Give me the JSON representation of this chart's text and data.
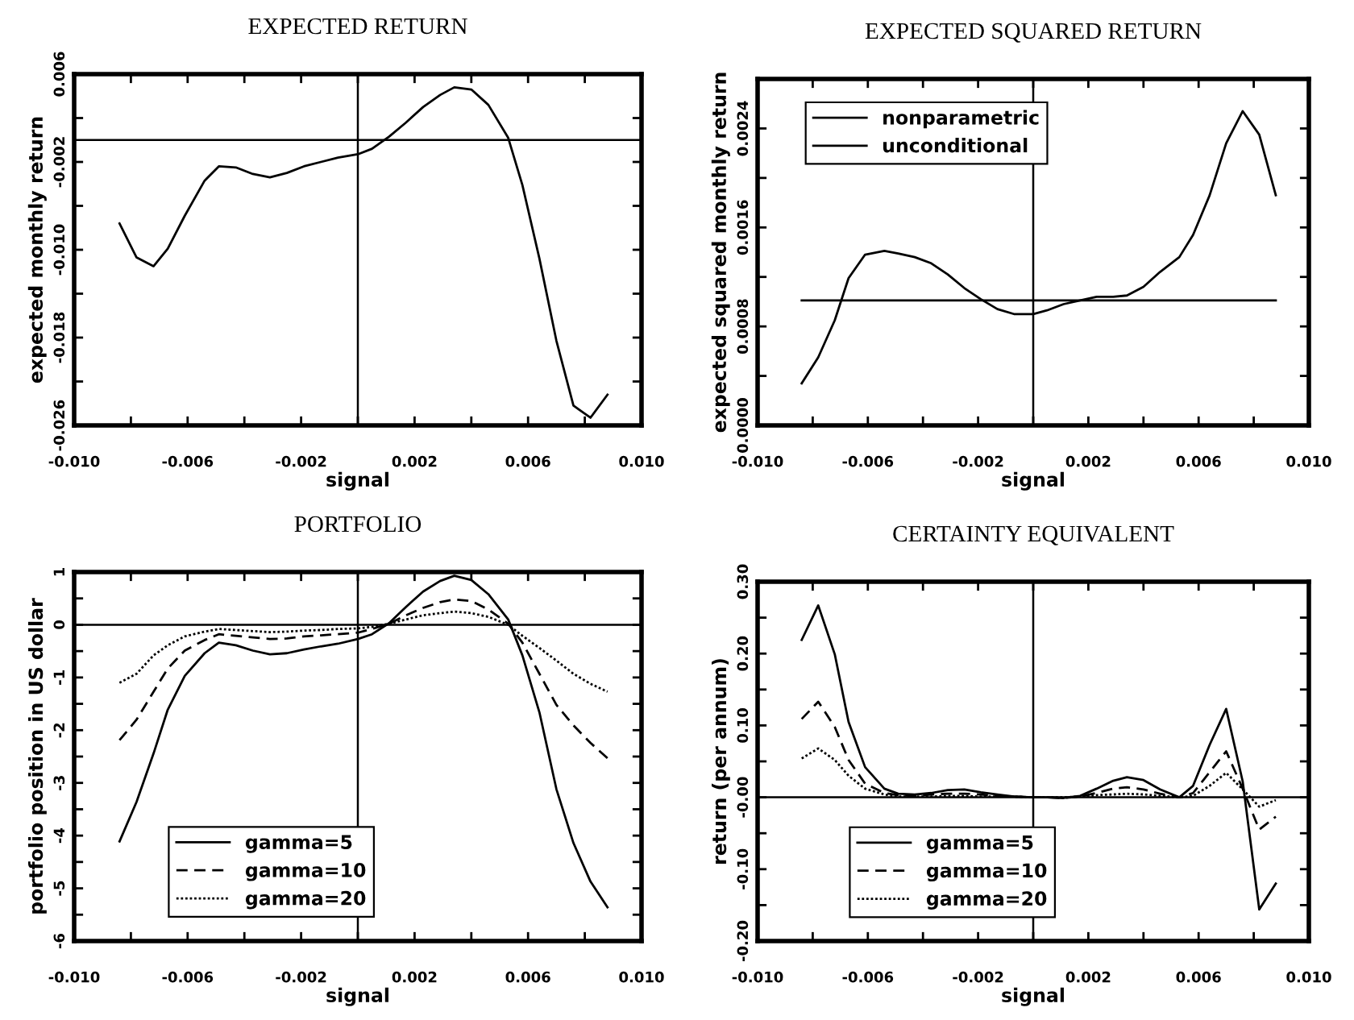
{
  "chart_data": [
    {
      "type": "line",
      "title": "EXPECTED RETURN",
      "xlabel": "signal",
      "ylabel": "expected monthly return",
      "x": [
        -0.0084,
        -0.0078,
        -0.0072,
        -0.0067,
        -0.0061,
        -0.0054,
        -0.0049,
        -0.0043,
        -0.0037,
        -0.0031,
        -0.0025,
        -0.0019,
        -0.0013,
        -0.0007,
        0.0,
        0.0005,
        0.0011,
        0.0017,
        0.0023,
        0.0029,
        0.0034,
        0.004,
        0.0046,
        0.0053,
        0.0058,
        0.0064,
        0.007,
        0.0076,
        0.0082,
        0.0088
      ],
      "series": [
        {
          "color": "#000000",
          "line_style": "solid",
          "values": [
            -0.0076,
            -0.0107,
            -0.0115,
            -0.0099,
            -0.0069,
            -0.0037,
            -0.0024,
            -0.0025,
            -0.0031,
            -0.0034,
            -0.003,
            -0.0024,
            -0.002,
            -0.0016,
            -0.0013,
            -0.0008,
            0.0003,
            0.0016,
            0.003,
            0.0041,
            0.0048,
            0.0046,
            0.0032,
            0.0002,
            -0.0041,
            -0.0108,
            -0.0183,
            -0.0242,
            -0.0253,
            -0.0232
          ]
        }
      ],
      "xlim": [
        -0.01,
        0.01
      ],
      "xticks": [
        {
          "value": -0.01,
          "label": "-0.010"
        },
        {
          "value": -0.008,
          "label": null
        },
        {
          "value": -0.006,
          "label": "-0.006"
        },
        {
          "value": -0.004,
          "label": null
        },
        {
          "value": -0.002,
          "label": "-0.002"
        },
        {
          "value": 0.0,
          "label": null
        },
        {
          "value": 0.002,
          "label": "0.002"
        },
        {
          "value": 0.004,
          "label": null
        },
        {
          "value": 0.006,
          "label": "0.006"
        },
        {
          "value": 0.008,
          "label": null
        },
        {
          "value": 0.01,
          "label": "0.010"
        }
      ],
      "ylim": [
        -0.026,
        0.006
      ],
      "yticks": [
        {
          "value": -0.026,
          "label": "-0.026"
        },
        {
          "value": -0.022,
          "label": null
        },
        {
          "value": -0.018,
          "label": "-0.018"
        },
        {
          "value": -0.014,
          "label": null
        },
        {
          "value": -0.01,
          "label": "-0.010"
        },
        {
          "value": -0.006,
          "label": null
        },
        {
          "value": -0.002,
          "label": "-0.002"
        },
        {
          "value": 0.002,
          "label": null
        },
        {
          "value": 0.006,
          "label": "0.006"
        }
      ],
      "ref_lines": [
        {
          "axis": "x",
          "value": 0.0,
          "color": "#000000"
        },
        {
          "axis": "y",
          "value": 0.0,
          "color": "#000000"
        }
      ]
    },
    {
      "type": "line",
      "title": "EXPECTED SQUARED RETURN",
      "xlabel": "signal",
      "ylabel": "expected squared monthly return",
      "x": [
        -0.0084,
        -0.0078,
        -0.0072,
        -0.0067,
        -0.0061,
        -0.0054,
        -0.0049,
        -0.0043,
        -0.0037,
        -0.0031,
        -0.0025,
        -0.0019,
        -0.0013,
        -0.0007,
        0.0,
        0.0005,
        0.0011,
        0.0017,
        0.0023,
        0.0029,
        0.0034,
        0.004,
        0.0046,
        0.0053,
        0.0058,
        0.0064,
        0.007,
        0.0076,
        0.0082,
        0.0088
      ],
      "series": [
        {
          "name": "nonparametric",
          "color": "#000000",
          "line_style": "solid",
          "values": [
            0.00034,
            0.00055,
            0.00085,
            0.00119,
            0.00138,
            0.00141,
            0.00139,
            0.00136,
            0.00131,
            0.00122,
            0.00111,
            0.00102,
            0.00094,
            0.0009,
            0.0009,
            0.00093,
            0.00098,
            0.00101,
            0.00104,
            0.00104,
            0.00105,
            0.00112,
            0.00124,
            0.00136,
            0.00154,
            0.00186,
            0.00228,
            0.00254,
            0.00235,
            0.00186
          ]
        },
        {
          "name": "unconditional",
          "color": "#000000",
          "line_style": "solid",
          "x": [
            -0.0084,
            0.0088
          ],
          "values": [
            0.00101,
            0.00101
          ]
        }
      ],
      "xlim": [
        -0.01,
        0.01
      ],
      "xticks": [
        {
          "value": -0.01,
          "label": "-0.010"
        },
        {
          "value": -0.008,
          "label": null
        },
        {
          "value": -0.006,
          "label": "-0.006"
        },
        {
          "value": -0.004,
          "label": null
        },
        {
          "value": -0.002,
          "label": "-0.002"
        },
        {
          "value": 0.0,
          "label": null
        },
        {
          "value": 0.002,
          "label": "0.002"
        },
        {
          "value": 0.004,
          "label": null
        },
        {
          "value": 0.006,
          "label": "0.006"
        },
        {
          "value": 0.008,
          "label": null
        },
        {
          "value": 0.01,
          "label": "0.010"
        }
      ],
      "ylim": [
        0.0,
        0.0028
      ],
      "yticks": [
        {
          "value": 0.0,
          "label": "0.0000"
        },
        {
          "value": 0.0004,
          "label": null
        },
        {
          "value": 0.0008,
          "label": "0.0008"
        },
        {
          "value": 0.0012,
          "label": null
        },
        {
          "value": 0.0016,
          "label": "0.0016"
        },
        {
          "value": 0.002,
          "label": null
        },
        {
          "value": 0.0024,
          "label": "0.0024"
        }
      ],
      "ref_lines": [
        {
          "axis": "x",
          "value": 0.0,
          "color": "#000000"
        }
      ],
      "legend": "top left"
    },
    {
      "type": "line",
      "title": "PORTFOLIO",
      "xlabel": "signal",
      "ylabel": "portfolio position in US dollar",
      "x": [
        -0.0084,
        -0.0078,
        -0.0072,
        -0.0067,
        -0.0061,
        -0.0054,
        -0.0049,
        -0.0043,
        -0.0037,
        -0.0031,
        -0.0025,
        -0.0019,
        -0.0013,
        -0.0007,
        0.0,
        0.0005,
        0.0011,
        0.0017,
        0.0023,
        0.0029,
        0.0034,
        0.004,
        0.0046,
        0.0053,
        0.0058,
        0.0064,
        0.007,
        0.0076,
        0.0082,
        0.0088
      ],
      "series": [
        {
          "name": "gamma=5",
          "color": "#000000",
          "line_style": "solid",
          "values": [
            -4.11,
            -3.36,
            -2.44,
            -1.61,
            -0.97,
            -0.54,
            -0.34,
            -0.39,
            -0.49,
            -0.56,
            -0.54,
            -0.47,
            -0.41,
            -0.36,
            -0.27,
            -0.18,
            0.03,
            0.34,
            0.63,
            0.83,
            0.93,
            0.85,
            0.58,
            0.1,
            -0.58,
            -1.66,
            -3.12,
            -4.14,
            -4.87,
            -5.36
          ]
        },
        {
          "name": "gamma=10",
          "color": "#000000",
          "line_style": "dashed",
          "values": [
            -2.19,
            -1.8,
            -1.27,
            -0.83,
            -0.49,
            -0.29,
            -0.18,
            -0.21,
            -0.24,
            -0.27,
            -0.26,
            -0.22,
            -0.2,
            -0.18,
            -0.15,
            -0.08,
            0.02,
            0.18,
            0.32,
            0.43,
            0.48,
            0.45,
            0.29,
            0.02,
            -0.34,
            -0.93,
            -1.52,
            -1.91,
            -2.24,
            -2.53
          ]
        },
        {
          "name": "gamma=20",
          "color": "#000000",
          "line_style": "dotted",
          "values": [
            -1.1,
            -0.93,
            -0.58,
            -0.39,
            -0.22,
            -0.13,
            -0.08,
            -0.1,
            -0.12,
            -0.14,
            -0.13,
            -0.11,
            -0.1,
            -0.08,
            -0.07,
            -0.04,
            0.02,
            0.1,
            0.18,
            0.22,
            0.25,
            0.22,
            0.15,
            0.0,
            -0.21,
            -0.44,
            -0.68,
            -0.93,
            -1.12,
            -1.27
          ]
        }
      ],
      "xlim": [
        -0.01,
        0.01
      ],
      "xticks": [
        {
          "value": -0.01,
          "label": "-0.010"
        },
        {
          "value": -0.008,
          "label": null
        },
        {
          "value": -0.006,
          "label": "-0.006"
        },
        {
          "value": -0.004,
          "label": null
        },
        {
          "value": -0.002,
          "label": "-0.002"
        },
        {
          "value": 0.0,
          "label": null
        },
        {
          "value": 0.002,
          "label": "0.002"
        },
        {
          "value": 0.004,
          "label": null
        },
        {
          "value": 0.006,
          "label": "0.006"
        },
        {
          "value": 0.008,
          "label": null
        },
        {
          "value": 0.01,
          "label": "0.010"
        }
      ],
      "ylim": [
        -6,
        1
      ],
      "yticks": [
        -6,
        {
          "value": -5.5,
          "label": null
        },
        -5,
        {
          "value": -4.5,
          "label": null
        },
        -4,
        {
          "value": -3.5,
          "label": null
        },
        -3,
        {
          "value": -2.5,
          "label": null
        },
        -2,
        {
          "value": -1.5,
          "label": null
        },
        -1,
        {
          "value": -0.5,
          "label": null
        },
        0,
        {
          "value": 0.5,
          "label": null
        },
        1
      ],
      "ref_lines": [
        {
          "axis": "x",
          "value": 0.0,
          "color": "#000000"
        },
        {
          "axis": "y",
          "value": 0.0,
          "color": "#000000"
        }
      ],
      "legend": "bottom left"
    },
    {
      "type": "line",
      "title": "CERTAINTY EQUIVALENT",
      "xlabel": "signal",
      "ylabel": "return (per annum)",
      "x": [
        -0.0084,
        -0.0078,
        -0.0072,
        -0.0067,
        -0.0061,
        -0.0054,
        -0.0049,
        -0.0043,
        -0.0037,
        -0.0031,
        -0.0025,
        -0.0019,
        -0.0013,
        -0.0007,
        0.0,
        0.0005,
        0.0011,
        0.0017,
        0.0023,
        0.0029,
        0.0034,
        0.004,
        0.0046,
        0.0053,
        0.0058,
        0.0064,
        0.007,
        0.0076,
        0.0082,
        0.0088
      ],
      "series": [
        {
          "name": "gamma=5",
          "color": "#000000",
          "line_style": "solid",
          "values": [
            0.219,
            0.267,
            0.199,
            0.105,
            0.042,
            0.012,
            0.005,
            0.004,
            0.006,
            0.01,
            0.011,
            0.007,
            0.004,
            0.001,
            0.0,
            0.0,
            -0.001,
            0.002,
            0.012,
            0.023,
            0.028,
            0.024,
            0.011,
            0.0,
            0.016,
            0.073,
            0.123,
            0.022,
            -0.156,
            -0.12
          ]
        },
        {
          "name": "gamma=10",
          "color": "#000000",
          "line_style": "dashed",
          "values": [
            0.109,
            0.133,
            0.098,
            0.052,
            0.019,
            0.006,
            0.003,
            0.002,
            0.004,
            0.005,
            0.005,
            0.004,
            0.002,
            0.001,
            0.0,
            0.0,
            -0.001,
            0.001,
            0.006,
            0.012,
            0.014,
            0.011,
            0.005,
            0.0,
            0.006,
            0.035,
            0.064,
            0.012,
            -0.045,
            -0.027
          ]
        },
        {
          "name": "gamma=20",
          "color": "#000000",
          "line_style": "dotted",
          "values": [
            0.054,
            0.068,
            0.052,
            0.03,
            0.012,
            0.004,
            0.001,
            0.001,
            0.001,
            0.002,
            0.002,
            0.001,
            0.001,
            0.001,
            0.0,
            0.0,
            0.0,
            0.001,
            0.003,
            0.004,
            0.005,
            0.004,
            0.002,
            0.0,
            0.002,
            0.016,
            0.034,
            0.011,
            -0.013,
            -0.004
          ]
        }
      ],
      "xlim": [
        -0.01,
        0.01
      ],
      "xticks": [
        {
          "value": -0.01,
          "label": "-0.010"
        },
        {
          "value": -0.008,
          "label": null
        },
        {
          "value": -0.006,
          "label": "-0.006"
        },
        {
          "value": -0.004,
          "label": null
        },
        {
          "value": -0.002,
          "label": "-0.002"
        },
        {
          "value": 0.0,
          "label": null
        },
        {
          "value": 0.002,
          "label": "0.002"
        },
        {
          "value": 0.004,
          "label": null
        },
        {
          "value": 0.006,
          "label": "0.006"
        },
        {
          "value": 0.008,
          "label": null
        },
        {
          "value": 0.01,
          "label": "0.010"
        }
      ],
      "ylim": [
        -0.2,
        0.3
      ],
      "yticks": [
        {
          "value": -0.2,
          "label": "-0.20"
        },
        {
          "value": -0.15,
          "label": null
        },
        {
          "value": -0.1,
          "label": "-0.10"
        },
        {
          "value": -0.05,
          "label": null
        },
        {
          "value": 0.0,
          "label": "-0.00"
        },
        {
          "value": 0.05,
          "label": null
        },
        {
          "value": 0.1,
          "label": "0.10"
        },
        {
          "value": 0.15,
          "label": null
        },
        {
          "value": 0.2,
          "label": "0.20"
        },
        {
          "value": 0.25,
          "label": null
        },
        {
          "value": 0.3,
          "label": "0.30"
        }
      ],
      "ref_lines": [
        {
          "axis": "x",
          "value": 0.0,
          "color": "#000000"
        },
        {
          "axis": "y",
          "value": 0.0,
          "color": "#000000"
        }
      ],
      "legend": "bottom left"
    }
  ]
}
